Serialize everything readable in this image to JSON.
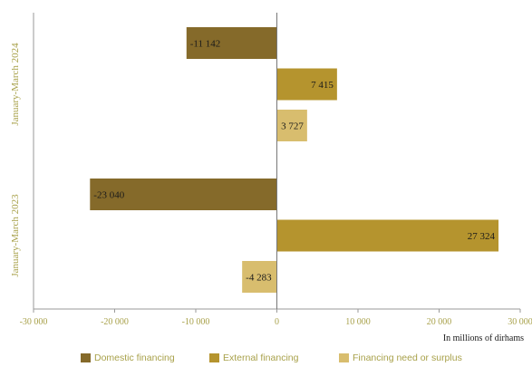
{
  "chart_data": {
    "type": "bar",
    "orientation": "horizontal",
    "groups": [
      "January-March 2024",
      "January-March 2023"
    ],
    "series": [
      {
        "name": "Domestic financing",
        "color": "#856a2a",
        "values": [
          -11142,
          -23040
        ]
      },
      {
        "name": "External financing",
        "color": "#b5942e",
        "values": [
          7415,
          27324
        ]
      },
      {
        "name": "Financing need or surplus",
        "color": "#d8bd6e",
        "values": [
          3727,
          -4283
        ]
      }
    ],
    "data_labels": [
      [
        "-11 142",
        "-23 040"
      ],
      [
        "7 415",
        "27 324"
      ],
      [
        "3 727",
        "-4 283"
      ]
    ],
    "xlim": [
      -30000,
      30000
    ],
    "xticks": [
      -30000,
      -20000,
      -10000,
      0,
      10000,
      20000,
      30000
    ],
    "xtick_labels": [
      "-30 000",
      "-20 000",
      "-10 000",
      "0",
      "10 000",
      "20 000",
      "30 000"
    ],
    "xlabel": "In millions of dirhams",
    "grid": false,
    "legend_position": "bottom",
    "colors": {
      "axis_text": "#a8a14a",
      "axis_line": "#9a9a9a",
      "zero_line": "#777777",
      "label_text": "#1a1a1a"
    }
  }
}
